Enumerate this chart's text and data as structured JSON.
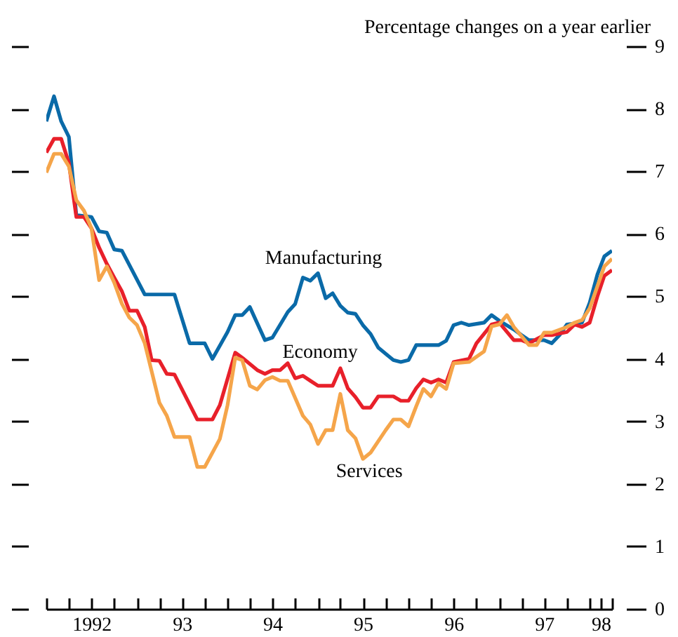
{
  "chart_data": {
    "type": "line",
    "ylabel": "Percentage changes on a year earlier",
    "xlim": [
      "1992-01",
      "1998-04"
    ],
    "xticks": [
      {
        "value": "1992-01",
        "label": null
      },
      {
        "value": "1992-04",
        "label": null
      },
      {
        "value": "1992-07",
        "label": "1992"
      },
      {
        "value": "1992-10",
        "label": null
      },
      {
        "value": "1993-01",
        "label": null
      },
      {
        "value": "1993-04",
        "label": null
      },
      {
        "value": "1993-07",
        "label": "93"
      },
      {
        "value": "1993-10",
        "label": null
      },
      {
        "value": "1994-01",
        "label": null
      },
      {
        "value": "1994-04",
        "label": null
      },
      {
        "value": "1994-07",
        "label": "94"
      },
      {
        "value": "1994-10",
        "label": null
      },
      {
        "value": "1995-01",
        "label": null
      },
      {
        "value": "1995-04",
        "label": null
      },
      {
        "value": "1995-07",
        "label": "95"
      },
      {
        "value": "1995-10",
        "label": null
      },
      {
        "value": "1996-01",
        "label": null
      },
      {
        "value": "1996-04",
        "label": null
      },
      {
        "value": "1996-07",
        "label": "96"
      },
      {
        "value": "1996-10",
        "label": null
      },
      {
        "value": "1997-01",
        "label": null
      },
      {
        "value": "1997-04",
        "label": null
      },
      {
        "value": "1997-07",
        "label": "97"
      },
      {
        "value": "1997-10",
        "label": null
      },
      {
        "value": "1998-01",
        "label": null
      },
      {
        "value": "1998-02-15",
        "label": "98"
      },
      {
        "value": "1998-04",
        "label": null
      }
    ],
    "ylim": [
      0,
      9
    ],
    "yticks": [
      0,
      1,
      2,
      3,
      4,
      5,
      6,
      7,
      8,
      9
    ],
    "grid": false,
    "line_style": "solid",
    "marker": "none",
    "series": [
      {
        "name": "Manufacturing",
        "color": "#0a6aa8",
        "x": [
          "1992-01",
          "1992-02",
          "1992-03",
          "1992-04",
          "1992-05",
          "1992-07",
          "1992-08",
          "1992-09",
          "1992-10",
          "1992-11",
          "1993-02",
          "1993-06",
          "1993-08",
          "1993-10",
          "1993-11",
          "1994-01",
          "1994-02",
          "1994-03",
          "1994-04",
          "1994-06",
          "1994-07",
          "1994-09",
          "1994-10",
          "1994-11",
          "1994-12",
          "1995-01",
          "1995-02",
          "1995-03",
          "1995-04",
          "1995-05",
          "1995-06",
          "1995-07",
          "1995-08",
          "1995-09",
          "1995-11",
          "1995-12",
          "1996-01",
          "1996-02",
          "1996-05",
          "1996-06",
          "1996-07",
          "1996-08",
          "1996-09",
          "1996-11",
          "1996-12",
          "1997-01",
          "1997-03",
          "1997-04",
          "1997-05",
          "1997-07",
          "1997-08",
          "1997-09",
          "1997-10",
          "1997-12",
          "1998-01",
          "1998-02",
          "1998-03",
          "1998-04"
        ],
        "values": [
          7.8,
          8.2,
          7.8,
          7.55,
          6.3,
          6.27,
          6.04,
          6.02,
          5.75,
          5.73,
          5.03,
          5.03,
          4.25,
          4.25,
          4.0,
          4.43,
          4.7,
          4.7,
          4.83,
          4.3,
          4.34,
          4.75,
          4.88,
          5.3,
          5.25,
          5.37,
          4.97,
          5.05,
          4.85,
          4.74,
          4.72,
          4.54,
          4.4,
          4.18,
          3.98,
          3.95,
          3.98,
          4.22,
          4.22,
          4.29,
          4.54,
          4.58,
          4.54,
          4.58,
          4.7,
          4.61,
          4.47,
          4.38,
          4.3,
          4.3,
          4.25,
          4.38,
          4.55,
          4.58,
          4.9,
          5.35,
          5.64,
          5.73
        ]
      },
      {
        "name": "Economy",
        "color": "#e8202a",
        "x": [
          "1992-01",
          "1992-02",
          "1992-03",
          "1992-04",
          "1992-05",
          "1992-06",
          "1992-07",
          "1992-08",
          "1992-09",
          "1992-10",
          "1992-11",
          "1992-12",
          "1993-01",
          "1993-02",
          "1993-03",
          "1993-04",
          "1993-05",
          "1993-06",
          "1993-09",
          "1993-11",
          "1993-12",
          "1994-02",
          "1994-03",
          "1994-05",
          "1994-06",
          "1994-07",
          "1994-08",
          "1994-09",
          "1994-10",
          "1994-11",
          "1994-12",
          "1995-01",
          "1995-03",
          "1995-04",
          "1995-05",
          "1995-06",
          "1995-07",
          "1995-08",
          "1995-09",
          "1995-11",
          "1995-12",
          "1996-01",
          "1996-02",
          "1996-03",
          "1996-04",
          "1996-05",
          "1996-06",
          "1996-07",
          "1996-09",
          "1996-10",
          "1996-12",
          "1997-01",
          "1997-03",
          "1997-04",
          "1997-05",
          "1997-07",
          "1997-08",
          "1997-10",
          "1997-11",
          "1997-12",
          "1998-01",
          "1998-02",
          "1998-03",
          "1998-04"
        ],
        "values": [
          7.3,
          7.52,
          7.52,
          7.13,
          6.27,
          6.27,
          6.09,
          5.78,
          5.52,
          5.3,
          5.08,
          4.77,
          4.77,
          4.51,
          3.98,
          3.97,
          3.76,
          3.75,
          3.03,
          3.03,
          3.26,
          4.1,
          4.02,
          3.82,
          3.76,
          3.82,
          3.82,
          3.93,
          3.69,
          3.73,
          3.65,
          3.57,
          3.57,
          3.85,
          3.53,
          3.39,
          3.22,
          3.22,
          3.4,
          3.4,
          3.33,
          3.33,
          3.53,
          3.67,
          3.62,
          3.67,
          3.62,
          3.95,
          4.0,
          4.25,
          4.55,
          4.58,
          4.3,
          4.3,
          4.25,
          4.38,
          4.38,
          4.43,
          4.55,
          4.51,
          4.58,
          5.0,
          5.33,
          5.42
        ]
      },
      {
        "name": "Services",
        "color": "#f5a54a",
        "x": [
          "1992-01",
          "1992-02",
          "1992-03",
          "1992-04",
          "1992-05",
          "1992-06",
          "1992-07",
          "1992-08",
          "1992-09",
          "1992-10",
          "1992-11",
          "1992-12",
          "1993-01",
          "1993-02",
          "1993-04",
          "1993-05",
          "1993-06",
          "1993-08",
          "1993-09",
          "1993-10",
          "1993-12",
          "1994-01",
          "1994-02",
          "1994-03",
          "1994-04",
          "1994-05",
          "1994-06",
          "1994-07",
          "1994-08",
          "1994-09",
          "1994-11",
          "1994-12",
          "1995-01",
          "1995-02",
          "1995-03",
          "1995-04",
          "1995-05",
          "1995-06",
          "1995-07",
          "1995-08",
          "1995-10",
          "1995-11",
          "1995-12",
          "1996-01",
          "1996-02",
          "1996-03",
          "1996-04",
          "1996-05",
          "1996-06",
          "1996-07",
          "1996-09",
          "1996-11",
          "1996-12",
          "1997-01",
          "1997-02",
          "1997-03",
          "1997-05",
          "1997-06",
          "1997-07",
          "1997-08",
          "1997-10",
          "1997-11",
          "1997-12",
          "1998-01",
          "1998-03",
          "1998-04"
        ],
        "values": [
          6.98,
          7.28,
          7.28,
          7.08,
          6.54,
          6.37,
          6.09,
          5.26,
          5.48,
          5.22,
          4.88,
          4.66,
          4.54,
          4.25,
          3.3,
          3.09,
          2.75,
          2.75,
          2.27,
          2.27,
          2.72,
          3.26,
          4.02,
          3.98,
          3.57,
          3.51,
          3.66,
          3.71,
          3.65,
          3.65,
          3.09,
          2.95,
          2.64,
          2.86,
          2.86,
          3.44,
          2.86,
          2.73,
          2.4,
          2.5,
          2.86,
          3.03,
          3.03,
          2.92,
          3.24,
          3.52,
          3.4,
          3.61,
          3.52,
          3.93,
          3.95,
          4.12,
          4.52,
          4.55,
          4.7,
          4.51,
          4.22,
          4.22,
          4.42,
          4.42,
          4.51,
          4.58,
          4.62,
          4.81,
          5.48,
          5.6
        ]
      }
    ]
  }
}
